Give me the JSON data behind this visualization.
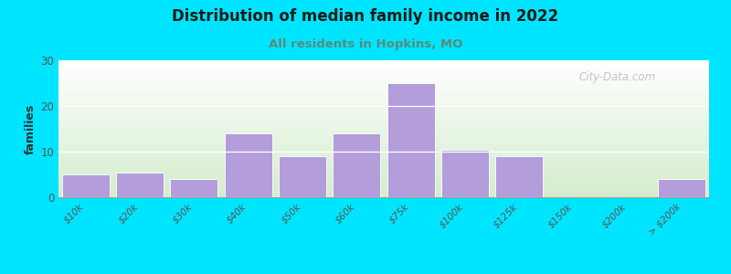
{
  "title": "Distribution of median family income in 2022",
  "subtitle": "All residents in Hopkins, MO",
  "ylabel": "families",
  "categories": [
    "$10k",
    "$20k",
    "$30k",
    "$40k",
    "$50k",
    "$60k",
    "$75k",
    "$100k",
    "$125k",
    "$150k",
    "$200k",
    "> $200k"
  ],
  "values": [
    5,
    5.5,
    4,
    14,
    9,
    14,
    25,
    10.5,
    9,
    0,
    0,
    4
  ],
  "bar_color": "#b39ddb",
  "bg_color_top": "#ffffff",
  "bg_color_bottom": "#d4edcc",
  "outer_bg": "#00e5ff",
  "title_color": "#1a1a1a",
  "subtitle_color": "#5b8a7a",
  "ylabel_color": "#333333",
  "tick_label_color": "#555555",
  "watermark": "City-Data.com",
  "ylim": [
    0,
    30
  ],
  "yticks": [
    0,
    10,
    20,
    30
  ]
}
